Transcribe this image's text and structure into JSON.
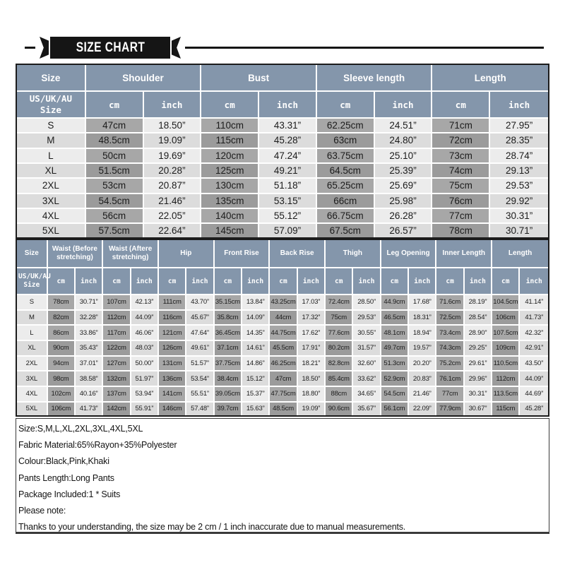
{
  "banner": {
    "title": "SIZE CHART"
  },
  "colors": {
    "header_bg": "#8496ab",
    "cm_cell": "#a7a7a7",
    "cm_cell_alt": "#9b9b9b",
    "light_cell": "#ececec",
    "light_cell_alt": "#dcdcdc",
    "text": "#1c1c1c",
    "ribbon": "#151515"
  },
  "table1": {
    "groups": [
      "Size",
      "Shoulder",
      "Bust",
      "Sleeve length",
      "Length"
    ],
    "sub_size": "US/UK/AU\nSize",
    "sub_cm": "cm",
    "sub_inch": "inch",
    "rows": [
      {
        "size": "S",
        "values": [
          "47cm",
          "18.50”",
          "110cm",
          "43.31”",
          "62.25cm",
          "24.51”",
          "71cm",
          "27.95”"
        ]
      },
      {
        "size": "M",
        "values": [
          "48.5cm",
          "19.09”",
          "115cm",
          "45.28”",
          "63cm",
          "24.80”",
          "72cm",
          "28.35”"
        ]
      },
      {
        "size": "L",
        "values": [
          "50cm",
          "19.69”",
          "120cm",
          "47.24”",
          "63.75cm",
          "25.10”",
          "73cm",
          "28.74”"
        ]
      },
      {
        "size": "XL",
        "values": [
          "51.5cm",
          "20.28”",
          "125cm",
          "49.21”",
          "64.5cm",
          "25.39”",
          "74cm",
          "29.13”"
        ]
      },
      {
        "size": "2XL",
        "values": [
          "53cm",
          "20.87”",
          "130cm",
          "51.18”",
          "65.25cm",
          "25.69”",
          "75cm",
          "29.53”"
        ]
      },
      {
        "size": "3XL",
        "values": [
          "54.5cm",
          "21.46”",
          "135cm",
          "53.15”",
          "66cm",
          "25.98”",
          "76cm",
          "29.92”"
        ]
      },
      {
        "size": "4XL",
        "values": [
          "56cm",
          "22.05”",
          "140cm",
          "55.12”",
          "66.75cm",
          "26.28”",
          "77cm",
          "30.31”"
        ]
      },
      {
        "size": "5XL",
        "values": [
          "57.5cm",
          "22.64”",
          "145cm",
          "57.09”",
          "67.5cm",
          "26.57”",
          "78cm",
          "30.71”"
        ]
      }
    ]
  },
  "table2": {
    "groups": [
      "Size",
      "Waist (Before stretching)",
      "Waist (Aftere stretching)",
      "Hip",
      "Front Rise",
      "Back Rise",
      "Thigh",
      "Leg Opening",
      "Inner Length",
      "Length"
    ],
    "sub_size": "US/UK/AU\nSize",
    "sub_cm": "cm",
    "sub_inch": "inch",
    "rows": [
      {
        "size": "S",
        "values": [
          "78cm",
          "30.71”",
          "107cm",
          "42.13”",
          "111cm",
          "43.70”",
          "35.15cm",
          "13.84”",
          "43.25cm",
          "17.03”",
          "72.4cm",
          "28.50”",
          "44.9cm",
          "17.68”",
          "71.6cm",
          "28.19”",
          "104.5cm",
          "41.14”"
        ]
      },
      {
        "size": "M",
        "values": [
          "82cm",
          "32.28”",
          "112cm",
          "44.09”",
          "116cm",
          "45.67”",
          "35.8cm",
          "14.09”",
          "44cm",
          "17.32”",
          "75cm",
          "29.53”",
          "46.5cm",
          "18.31”",
          "72.5cm",
          "28.54”",
          "106cm",
          "41.73”"
        ]
      },
      {
        "size": "L",
        "values": [
          "86cm",
          "33.86”",
          "117cm",
          "46.06”",
          "121cm",
          "47.64”",
          "36.45cm",
          "14.35”",
          "44.75cm",
          "17.62”",
          "77.6cm",
          "30.55”",
          "48.1cm",
          "18.94”",
          "73.4cm",
          "28.90”",
          "107.5cm",
          "42.32”"
        ]
      },
      {
        "size": "XL",
        "values": [
          "90cm",
          "35.43”",
          "122cm",
          "48.03”",
          "126cm",
          "49.61”",
          "37.1cm",
          "14.61”",
          "45.5cm",
          "17.91”",
          "80.2cm",
          "31.57”",
          "49.7cm",
          "19.57”",
          "74.3cm",
          "29.25”",
          "109cm",
          "42.91”"
        ]
      },
      {
        "size": "2XL",
        "values": [
          "94cm",
          "37.01”",
          "127cm",
          "50.00”",
          "131cm",
          "51.57”",
          "37.75cm",
          "14.86”",
          "46.25cm",
          "18.21”",
          "82.8cm",
          "32.60”",
          "51.3cm",
          "20.20”",
          "75.2cm",
          "29.61”",
          "110.5cm",
          "43.50”"
        ]
      },
      {
        "size": "3XL",
        "values": [
          "98cm",
          "38.58”",
          "132cm",
          "51.97”",
          "136cm",
          "53.54”",
          "38.4cm",
          "15.12”",
          "47cm",
          "18.50”",
          "85.4cm",
          "33.62”",
          "52.9cm",
          "20.83”",
          "76.1cm",
          "29.96”",
          "112cm",
          "44.09”"
        ]
      },
      {
        "size": "4XL",
        "values": [
          "102cm",
          "40.16”",
          "137cm",
          "53.94”",
          "141cm",
          "55.51”",
          "39.05cm",
          "15.37”",
          "47.75cm",
          "18.80”",
          "88cm",
          "34.65”",
          "54.5cm",
          "21.46”",
          "77cm",
          "30.31”",
          "113.5cm",
          "44.69”"
        ]
      },
      {
        "size": "5XL",
        "values": [
          "106cm",
          "41.73”",
          "142cm",
          "55.91”",
          "146cm",
          "57.48”",
          "39.7cm",
          "15.63”",
          "48.5cm",
          "19.09”",
          "90.6cm",
          "35.67”",
          "56.1cm",
          "22.09”",
          "77.9cm",
          "30.67”",
          "115cm",
          "45.28”"
        ]
      }
    ]
  },
  "notes": {
    "lines": [
      "Size:S,M,L,XL,2XL,3XL,4XL,5XL",
      "Fabric Material:65%Rayon+35%Polyester",
      "Colour:Black,Pink,Khaki",
      "Pants Length:Long Pants",
      "Package Included:1 * Suits",
      "Please note:",
      "Thanks to your understanding, the size may be 2 cm / 1 inch inaccurate due to manual measurements."
    ]
  }
}
